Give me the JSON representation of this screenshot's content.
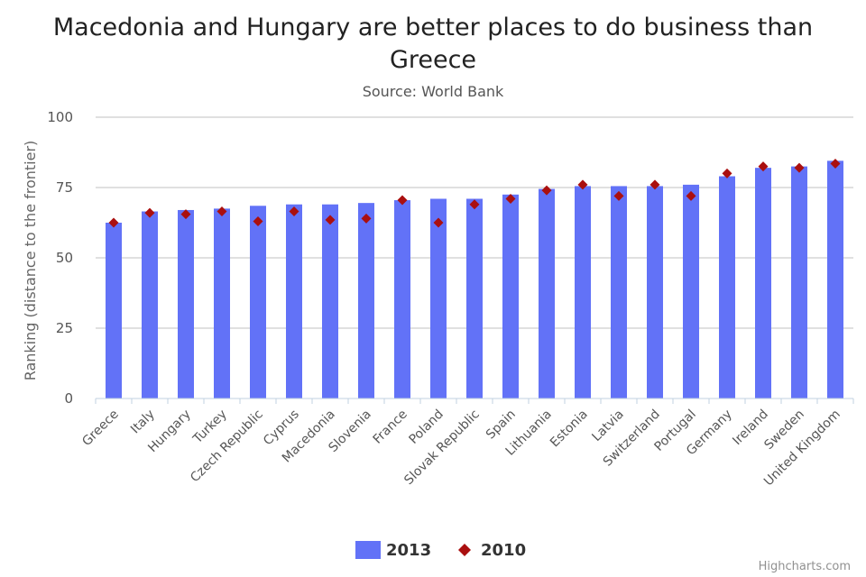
{
  "chart_data": {
    "type": "bar",
    "title_lines": [
      "Macedonia and Hungary are better places to do business than",
      "Greece"
    ],
    "subtitle": "Source: World Bank",
    "ylabel": "Ranking (distance to the frontier)",
    "xlabel": "",
    "ylim": [
      0,
      100
    ],
    "yticks": [
      0,
      25,
      50,
      75,
      100
    ],
    "grid": true,
    "legend_position": "bottom-center",
    "categories": [
      "Greece",
      "Italy",
      "Hungary",
      "Turkey",
      "Czech Republic",
      "Cyprus",
      "Macedonia",
      "Slovenia",
      "France",
      "Poland",
      "Slovak Republic",
      "Spain",
      "Lithuania",
      "Estonia",
      "Latvia",
      "Switzerland",
      "Portugal",
      "Germany",
      "Ireland",
      "Sweden",
      "United Kingdom"
    ],
    "series": [
      {
        "name": "2013",
        "kind": "bar",
        "color": "#6272f7",
        "values": [
          62.5,
          66.5,
          67,
          67.5,
          68.5,
          69,
          69,
          69.5,
          70.5,
          71,
          71,
          72.5,
          74.5,
          75.5,
          75.5,
          75.5,
          76,
          79,
          82,
          82.5,
          84.5
        ]
      },
      {
        "name": "2010",
        "kind": "marker",
        "color": "#aa0f0f",
        "values": [
          62.5,
          66,
          65.5,
          66.5,
          63,
          66.5,
          63.5,
          64,
          70.5,
          62.5,
          69,
          71,
          74,
          76,
          72,
          76,
          72,
          80,
          82.5,
          82,
          83.5
        ]
      }
    ]
  },
  "credits": "Highcharts.com"
}
